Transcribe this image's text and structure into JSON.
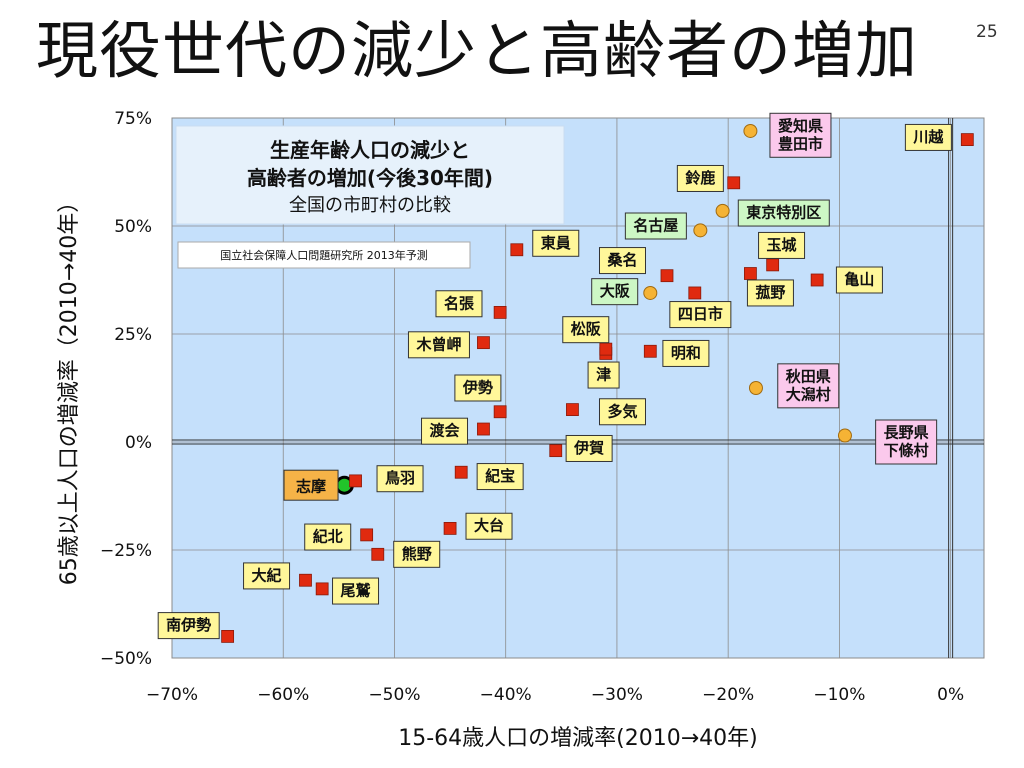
{
  "slide": {
    "title": "現役世代の減少と高齢者の増加",
    "page_number": "25"
  },
  "info_box": {
    "line1": "生産年齢人口の減少と",
    "line2": "高齢者の増加(今後30年間)",
    "line3": "全国の市町村の比較"
  },
  "source_note": "国立社会保障人口問題研究所 2013年予測",
  "colors": {
    "plot_bg": "#c5e0fb",
    "city_marker": "#e02a0f",
    "village_marker": "#f5b335",
    "highlight_marker": "#22c32a",
    "label_yellow": "#fff79a",
    "label_green": "#cdf7c5",
    "label_pink": "#fbc9ec",
    "label_orange": "#f6b347"
  },
  "chart_data": {
    "type": "scatter",
    "xlabel": "15-64歳人口の増減率(2010→40年)",
    "ylabel": "65歳以上人口の増減率（2010→40年）",
    "xlim": [
      -70,
      3
    ],
    "ylim": [
      -50,
      75
    ],
    "x_ticks": [
      -70,
      -60,
      -50,
      -40,
      -30,
      -20,
      -10,
      0
    ],
    "x_tick_labels": [
      "−70%",
      "−60%",
      "−50%",
      "−40%",
      "−30%",
      "−20%",
      "−10%",
      "0%"
    ],
    "y_ticks": [
      75,
      50,
      25,
      0,
      -25,
      -50
    ],
    "y_tick_labels": [
      "75%",
      "50%",
      "25%",
      "0%",
      "−25%",
      "−50%"
    ],
    "grid": true,
    "points": [
      {
        "name": "志摩",
        "x": -54.5,
        "y": -10,
        "marker": "highlight",
        "label_style": "orange"
      },
      {
        "name": "鳥羽",
        "x": -53.5,
        "y": -9,
        "marker": "city",
        "label_style": "yellow"
      },
      {
        "name": "紀宝",
        "x": -44,
        "y": -7,
        "marker": "city",
        "label_style": "yellow"
      },
      {
        "name": "大台",
        "x": -45,
        "y": -20,
        "marker": "city",
        "label_style": "yellow"
      },
      {
        "name": "紀北",
        "x": -52.5,
        "y": -21.5,
        "marker": "city",
        "label_style": "yellow"
      },
      {
        "name": "熊野",
        "x": -51.5,
        "y": -26,
        "marker": "city",
        "label_style": "yellow"
      },
      {
        "name": "大紀",
        "x": -58,
        "y": -32,
        "marker": "city",
        "label_style": "yellow"
      },
      {
        "name": "尾鷲",
        "x": -56.5,
        "y": -34,
        "marker": "city",
        "label_style": "yellow"
      },
      {
        "name": "南伊勢",
        "x": -65,
        "y": -45,
        "marker": "city",
        "label_style": "yellow"
      },
      {
        "name": "伊賀",
        "x": -35.5,
        "y": -2,
        "marker": "city",
        "label_style": "yellow"
      },
      {
        "name": "渡会",
        "x": -42,
        "y": 3,
        "marker": "city",
        "label_style": "yellow"
      },
      {
        "name": "伊勢",
        "x": -40.5,
        "y": 7,
        "marker": "city",
        "label_style": "yellow"
      },
      {
        "name": "多気",
        "x": -34,
        "y": 7.5,
        "marker": "city",
        "label_style": "yellow"
      },
      {
        "name": "津",
        "x": -31,
        "y": 20.5,
        "marker": "city",
        "label_style": "yellow"
      },
      {
        "name": "松阪",
        "x": -31,
        "y": 21.5,
        "marker": "city",
        "label_style": "yellow"
      },
      {
        "name": "明和",
        "x": -27,
        "y": 21,
        "marker": "city",
        "label_style": "yellow"
      },
      {
        "name": "木曾岬",
        "x": -42,
        "y": 23,
        "marker": "city",
        "label_style": "yellow"
      },
      {
        "name": "名張",
        "x": -40.5,
        "y": 30,
        "marker": "city",
        "label_style": "yellow"
      },
      {
        "name": "東員",
        "x": -39,
        "y": 44.5,
        "marker": "city",
        "label_style": "yellow"
      },
      {
        "name": "桑名",
        "x": -25.5,
        "y": 38.5,
        "marker": "city",
        "label_style": "yellow"
      },
      {
        "name": "大阪",
        "x": -27,
        "y": 34.5,
        "marker": "village",
        "label_style": "green"
      },
      {
        "name": "四日市",
        "x": -23,
        "y": 34.5,
        "marker": "city",
        "label_style": "yellow"
      },
      {
        "name": "名古屋",
        "x": -22.5,
        "y": 49,
        "marker": "village",
        "label_style": "green"
      },
      {
        "name": "鈴鹿",
        "x": -19.5,
        "y": 60,
        "marker": "city",
        "label_style": "yellow"
      },
      {
        "name": "東京特別区",
        "x": -20.5,
        "y": 53.5,
        "marker": "village",
        "label_style": "green"
      },
      {
        "name": "愛知県豊田市",
        "x": -18,
        "y": 72,
        "marker": "village",
        "label_style": "pink"
      },
      {
        "name": "玉城",
        "x": -16,
        "y": 41,
        "marker": "city",
        "label_style": "yellow"
      },
      {
        "name": "菰野",
        "x": -18,
        "y": 39,
        "marker": "city",
        "label_style": "yellow"
      },
      {
        "name": "亀山",
        "x": -12,
        "y": 37.5,
        "marker": "city",
        "label_style": "yellow"
      },
      {
        "name": "秋田県大潟村",
        "x": -17.5,
        "y": 12.5,
        "marker": "village",
        "label_style": "pink"
      },
      {
        "name": "長野県下條村",
        "x": -9.5,
        "y": 1.5,
        "marker": "village",
        "label_style": "pink"
      },
      {
        "name": "川越",
        "x": 1.5,
        "y": 70,
        "marker": "city",
        "label_style": "yellow"
      }
    ],
    "labels": [
      {
        "point": "志摩",
        "lines": [
          "志摩"
        ],
        "x": -57.5,
        "y": -10
      },
      {
        "point": "鳥羽",
        "lines": [
          "鳥羽"
        ],
        "x": -49.5,
        "y": -8.5
      },
      {
        "point": "紀宝",
        "lines": [
          "紀宝"
        ],
        "x": -40.5,
        "y": -8
      },
      {
        "point": "大台",
        "lines": [
          "大台"
        ],
        "x": -41.5,
        "y": -19.5
      },
      {
        "point": "紀北",
        "lines": [
          "紀北"
        ],
        "x": -56,
        "y": -22
      },
      {
        "point": "熊野",
        "lines": [
          "熊野"
        ],
        "x": -48,
        "y": -26
      },
      {
        "point": "大紀",
        "lines": [
          "大紀"
        ],
        "x": -61.5,
        "y": -31
      },
      {
        "point": "尾鷲",
        "lines": [
          "尾鷲"
        ],
        "x": -53.5,
        "y": -34.5
      },
      {
        "point": "南伊勢",
        "lines": [
          "南伊勢"
        ],
        "x": -68.5,
        "y": -42.5
      },
      {
        "point": "伊賀",
        "lines": [
          "伊賀"
        ],
        "x": -32.5,
        "y": -1.5
      },
      {
        "point": "渡会",
        "lines": [
          "渡会"
        ],
        "x": -45.5,
        "y": 2.5
      },
      {
        "point": "伊勢",
        "lines": [
          "伊勢"
        ],
        "x": -42.5,
        "y": 12.5
      },
      {
        "point": "多気",
        "lines": [
          "多気"
        ],
        "x": -29.5,
        "y": 7
      },
      {
        "point": "津",
        "lines": [
          "津"
        ],
        "x": -31.2,
        "y": 15.5
      },
      {
        "point": "松阪",
        "lines": [
          "松阪"
        ],
        "x": -32.8,
        "y": 26
      },
      {
        "point": "明和",
        "lines": [
          "明和"
        ],
        "x": -23.8,
        "y": 20.5
      },
      {
        "point": "木曾岬",
        "lines": [
          "木曾岬"
        ],
        "x": -46,
        "y": 22.5
      },
      {
        "point": "名張",
        "lines": [
          "名張"
        ],
        "x": -44.2,
        "y": 32
      },
      {
        "point": "東員",
        "lines": [
          "東員"
        ],
        "x": -35.5,
        "y": 46
      },
      {
        "point": "桑名",
        "lines": [
          "桑名"
        ],
        "x": -29.5,
        "y": 42
      },
      {
        "point": "大阪",
        "lines": [
          "大阪"
        ],
        "x": -30.2,
        "y": 34.8
      },
      {
        "point": "四日市",
        "lines": [
          "四日市"
        ],
        "x": -22.5,
        "y": 29.5
      },
      {
        "point": "名古屋",
        "lines": [
          "名古屋"
        ],
        "x": -26.5,
        "y": 50
      },
      {
        "point": "鈴鹿",
        "lines": [
          "鈴鹿"
        ],
        "x": -22.5,
        "y": 61
      },
      {
        "point": "東京特別区",
        "lines": [
          "東京特別区"
        ],
        "x": -15,
        "y": 53
      },
      {
        "point": "愛知県豊田市",
        "lines": [
          "愛知県",
          "豊田市"
        ],
        "x": -13.5,
        "y": 71
      },
      {
        "point": "玉城",
        "lines": [
          "玉城"
        ],
        "x": -15.2,
        "y": 45.5
      },
      {
        "point": "菰野",
        "lines": [
          "菰野"
        ],
        "x": -16.2,
        "y": 34.5
      },
      {
        "point": "亀山",
        "lines": [
          "亀山"
        ],
        "x": -8.2,
        "y": 37.5
      },
      {
        "point": "秋田県大潟村",
        "lines": [
          "秋田県",
          "大潟村"
        ],
        "x": -12.8,
        "y": 13
      },
      {
        "point": "長野県下條村",
        "lines": [
          "長野県",
          "下條村"
        ],
        "x": -4,
        "y": 0
      },
      {
        "point": "川越",
        "lines": [
          "川越"
        ],
        "x": -2,
        "y": 70.5
      }
    ]
  }
}
